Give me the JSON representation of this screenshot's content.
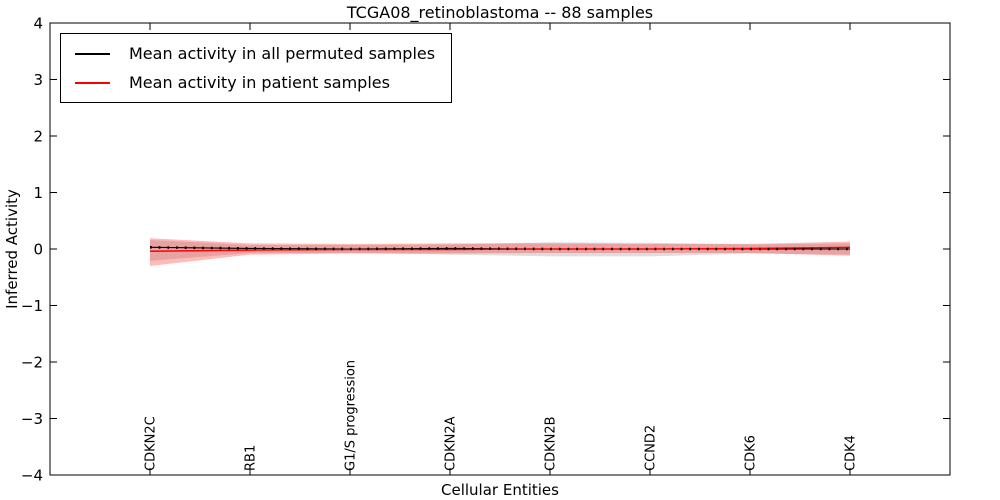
{
  "chart_data": {
    "type": "line",
    "title": "TCGA08_retinoblastoma -- 88 samples",
    "xlabel": "Cellular Entities",
    "ylabel": "Inferred Activity",
    "ylim": [
      -4,
      4
    ],
    "ytick_labels": [
      "4",
      "3",
      "2",
      "1",
      "0",
      "−1",
      "−2",
      "−3",
      "−4"
    ],
    "ytick_values": [
      4,
      3,
      2,
      1,
      0,
      -1,
      -2,
      -3,
      -4
    ],
    "grid": false,
    "legend_position": "upper-left",
    "categories": [
      "CDKN2C",
      "RB1",
      "G1/S progression",
      "CDKN2A",
      "CDKN2B",
      "CCND2",
      "CDK6",
      "CDK4"
    ],
    "series": [
      {
        "name": "Mean activity in all permuted samples",
        "color": "#000000",
        "line_style": "solid-with-dot-markers",
        "values": [
          0.03,
          0.01,
          0.0,
          0.01,
          0.0,
          0.0,
          0.0,
          0.0
        ],
        "band_upper": [
          0.16,
          0.07,
          0.07,
          0.08,
          0.12,
          0.11,
          0.08,
          0.1
        ],
        "band_lower": [
          -0.21,
          -0.07,
          -0.07,
          -0.1,
          -0.13,
          -0.13,
          -0.08,
          -0.1
        ],
        "band_color": "rgba(0,0,0,0.13)"
      },
      {
        "name": "Mean activity in patient samples",
        "color": "#ff0000",
        "line_style": "solid",
        "values": [
          -0.04,
          -0.02,
          -0.01,
          -0.01,
          0.0,
          0.0,
          0.01,
          0.03
        ],
        "band_upper": [
          0.19,
          0.1,
          0.09,
          0.1,
          0.1,
          0.09,
          0.09,
          0.13
        ],
        "band_lower": [
          -0.3,
          -0.1,
          -0.08,
          -0.08,
          -0.07,
          -0.07,
          -0.07,
          -0.12
        ],
        "band_color": "rgba(255,0,0,0.27)"
      }
    ]
  }
}
